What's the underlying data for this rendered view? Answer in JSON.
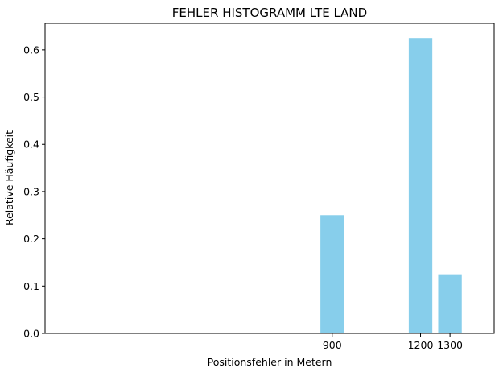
{
  "chart_data": {
    "type": "bar",
    "title": "FEHLER HISTOGRAMM LTE LAND",
    "xlabel": "Positionsfehler in Metern",
    "ylabel": "Relative Häufigkeit",
    "x": [
      900,
      1200,
      1300
    ],
    "values": [
      0.25,
      0.625,
      0.125
    ],
    "bar_width": 80,
    "xlim": [
      -75,
      1450
    ],
    "ylim": [
      0,
      0.656
    ],
    "xticks": [
      {
        "value": 900,
        "label": "900"
      },
      {
        "value": 1200,
        "label": "1200"
      },
      {
        "value": 1300,
        "label": "1300"
      }
    ],
    "yticks": [
      {
        "value": 0.0,
        "label": "0.0"
      },
      {
        "value": 0.1,
        "label": "0.1"
      },
      {
        "value": 0.2,
        "label": "0.2"
      },
      {
        "value": 0.3,
        "label": "0.3"
      },
      {
        "value": 0.4,
        "label": "0.4"
      },
      {
        "value": 0.5,
        "label": "0.5"
      },
      {
        "value": 0.6,
        "label": "0.6"
      }
    ],
    "bar_color": "#87ceeb",
    "grid": false,
    "legend": "none"
  }
}
